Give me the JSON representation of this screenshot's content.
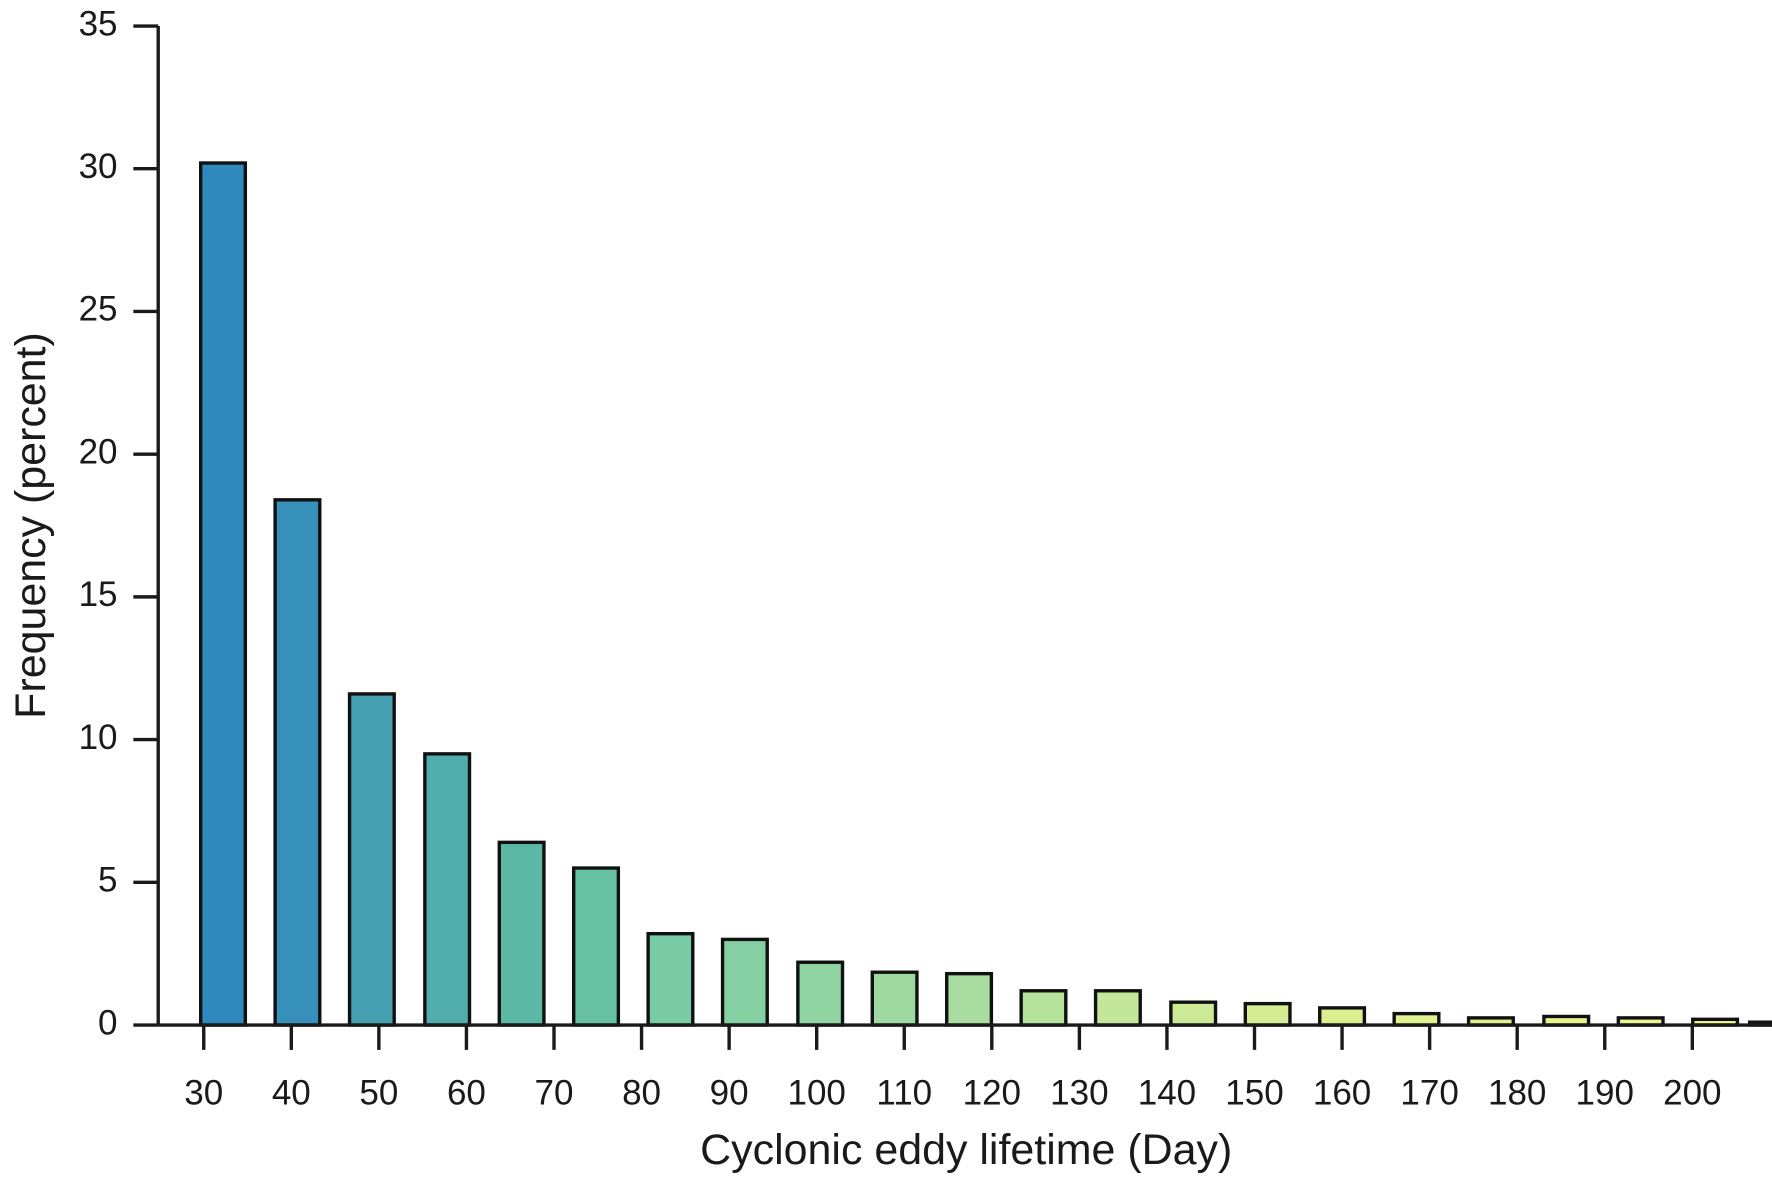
{
  "chart_data": {
    "type": "bar",
    "x_label": "Cyclonic eddy lifetime (Day)",
    "y_label": "Frequency (percent)",
    "x": [
      32.2,
      40.7,
      49.2,
      57.8,
      66.3,
      74.8,
      83.3,
      91.8,
      100.4,
      108.9,
      117.4,
      125.9,
      134.4,
      143.0,
      151.5,
      160.0,
      168.5,
      177.0,
      185.6,
      194.1,
      202.6,
      209.1
    ],
    "values": [
      30.2,
      18.4,
      11.6,
      9.5,
      6.4,
      5.5,
      3.2,
      3.0,
      2.2,
      1.85,
      1.8,
      1.2,
      1.2,
      0.8,
      0.75,
      0.6,
      0.4,
      0.25,
      0.3,
      0.25,
      0.2,
      0.1
    ],
    "colors": [
      "#2f89bc",
      "#3891bb",
      "#45a0b1",
      "#51acac",
      "#5bb8a4",
      "#66c2a3",
      "#78cba5",
      "#85d0a3",
      "#90d4a2",
      "#9dd9a1",
      "#a9dd9f",
      "#b6e29c",
      "#c2e69a",
      "#cce996",
      "#d4ed92",
      "#dbef90",
      "#e0f18f",
      "#e3f28e",
      "#e6f38e",
      "#e8f48e",
      "#eaf58e",
      "#ecf58e"
    ],
    "xlim": [
      24.8,
      209.1
    ],
    "xticks": [
      30,
      40,
      50,
      60,
      70,
      80,
      90,
      100,
      110,
      120,
      130,
      140,
      150,
      160,
      170,
      180,
      190,
      200
    ],
    "ylim": [
      0,
      35
    ],
    "yticks": [
      0,
      5,
      10,
      15,
      20,
      25,
      30,
      35
    ],
    "grid": false
  }
}
